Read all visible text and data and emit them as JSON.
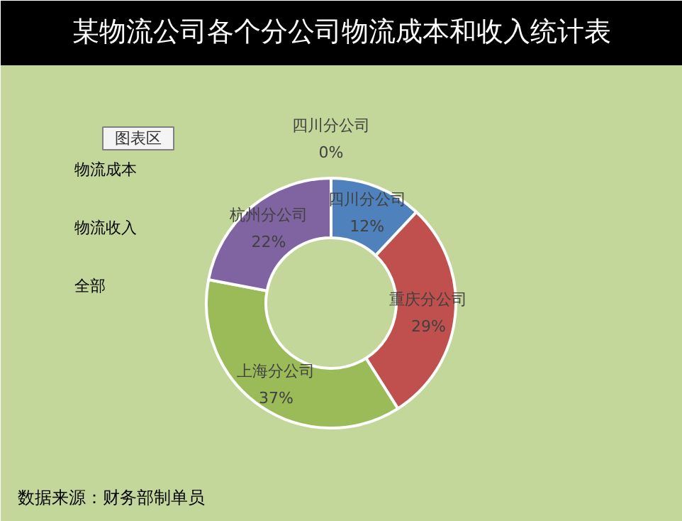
{
  "chart_data": {
    "type": "donut",
    "title": "某物流公司各个分公司物流成本和收入统计表",
    "categories": [
      "四川分公司",
      "四川分公司",
      "重庆分公司",
      "上海分公司",
      "杭州分公司"
    ],
    "values": [
      0,
      12,
      29,
      37,
      22
    ],
    "colors": [
      "#4bacc6",
      "#4f81bd",
      "#c0504d",
      "#9bbb59",
      "#8064a2"
    ],
    "value_labels": [
      "0%",
      "12%",
      "29%",
      "37%",
      "22%"
    ],
    "annotations": [
      "物流成本",
      "物流收入",
      "全部",
      "图表区",
      "数据来源：财务部制单员"
    ]
  }
}
